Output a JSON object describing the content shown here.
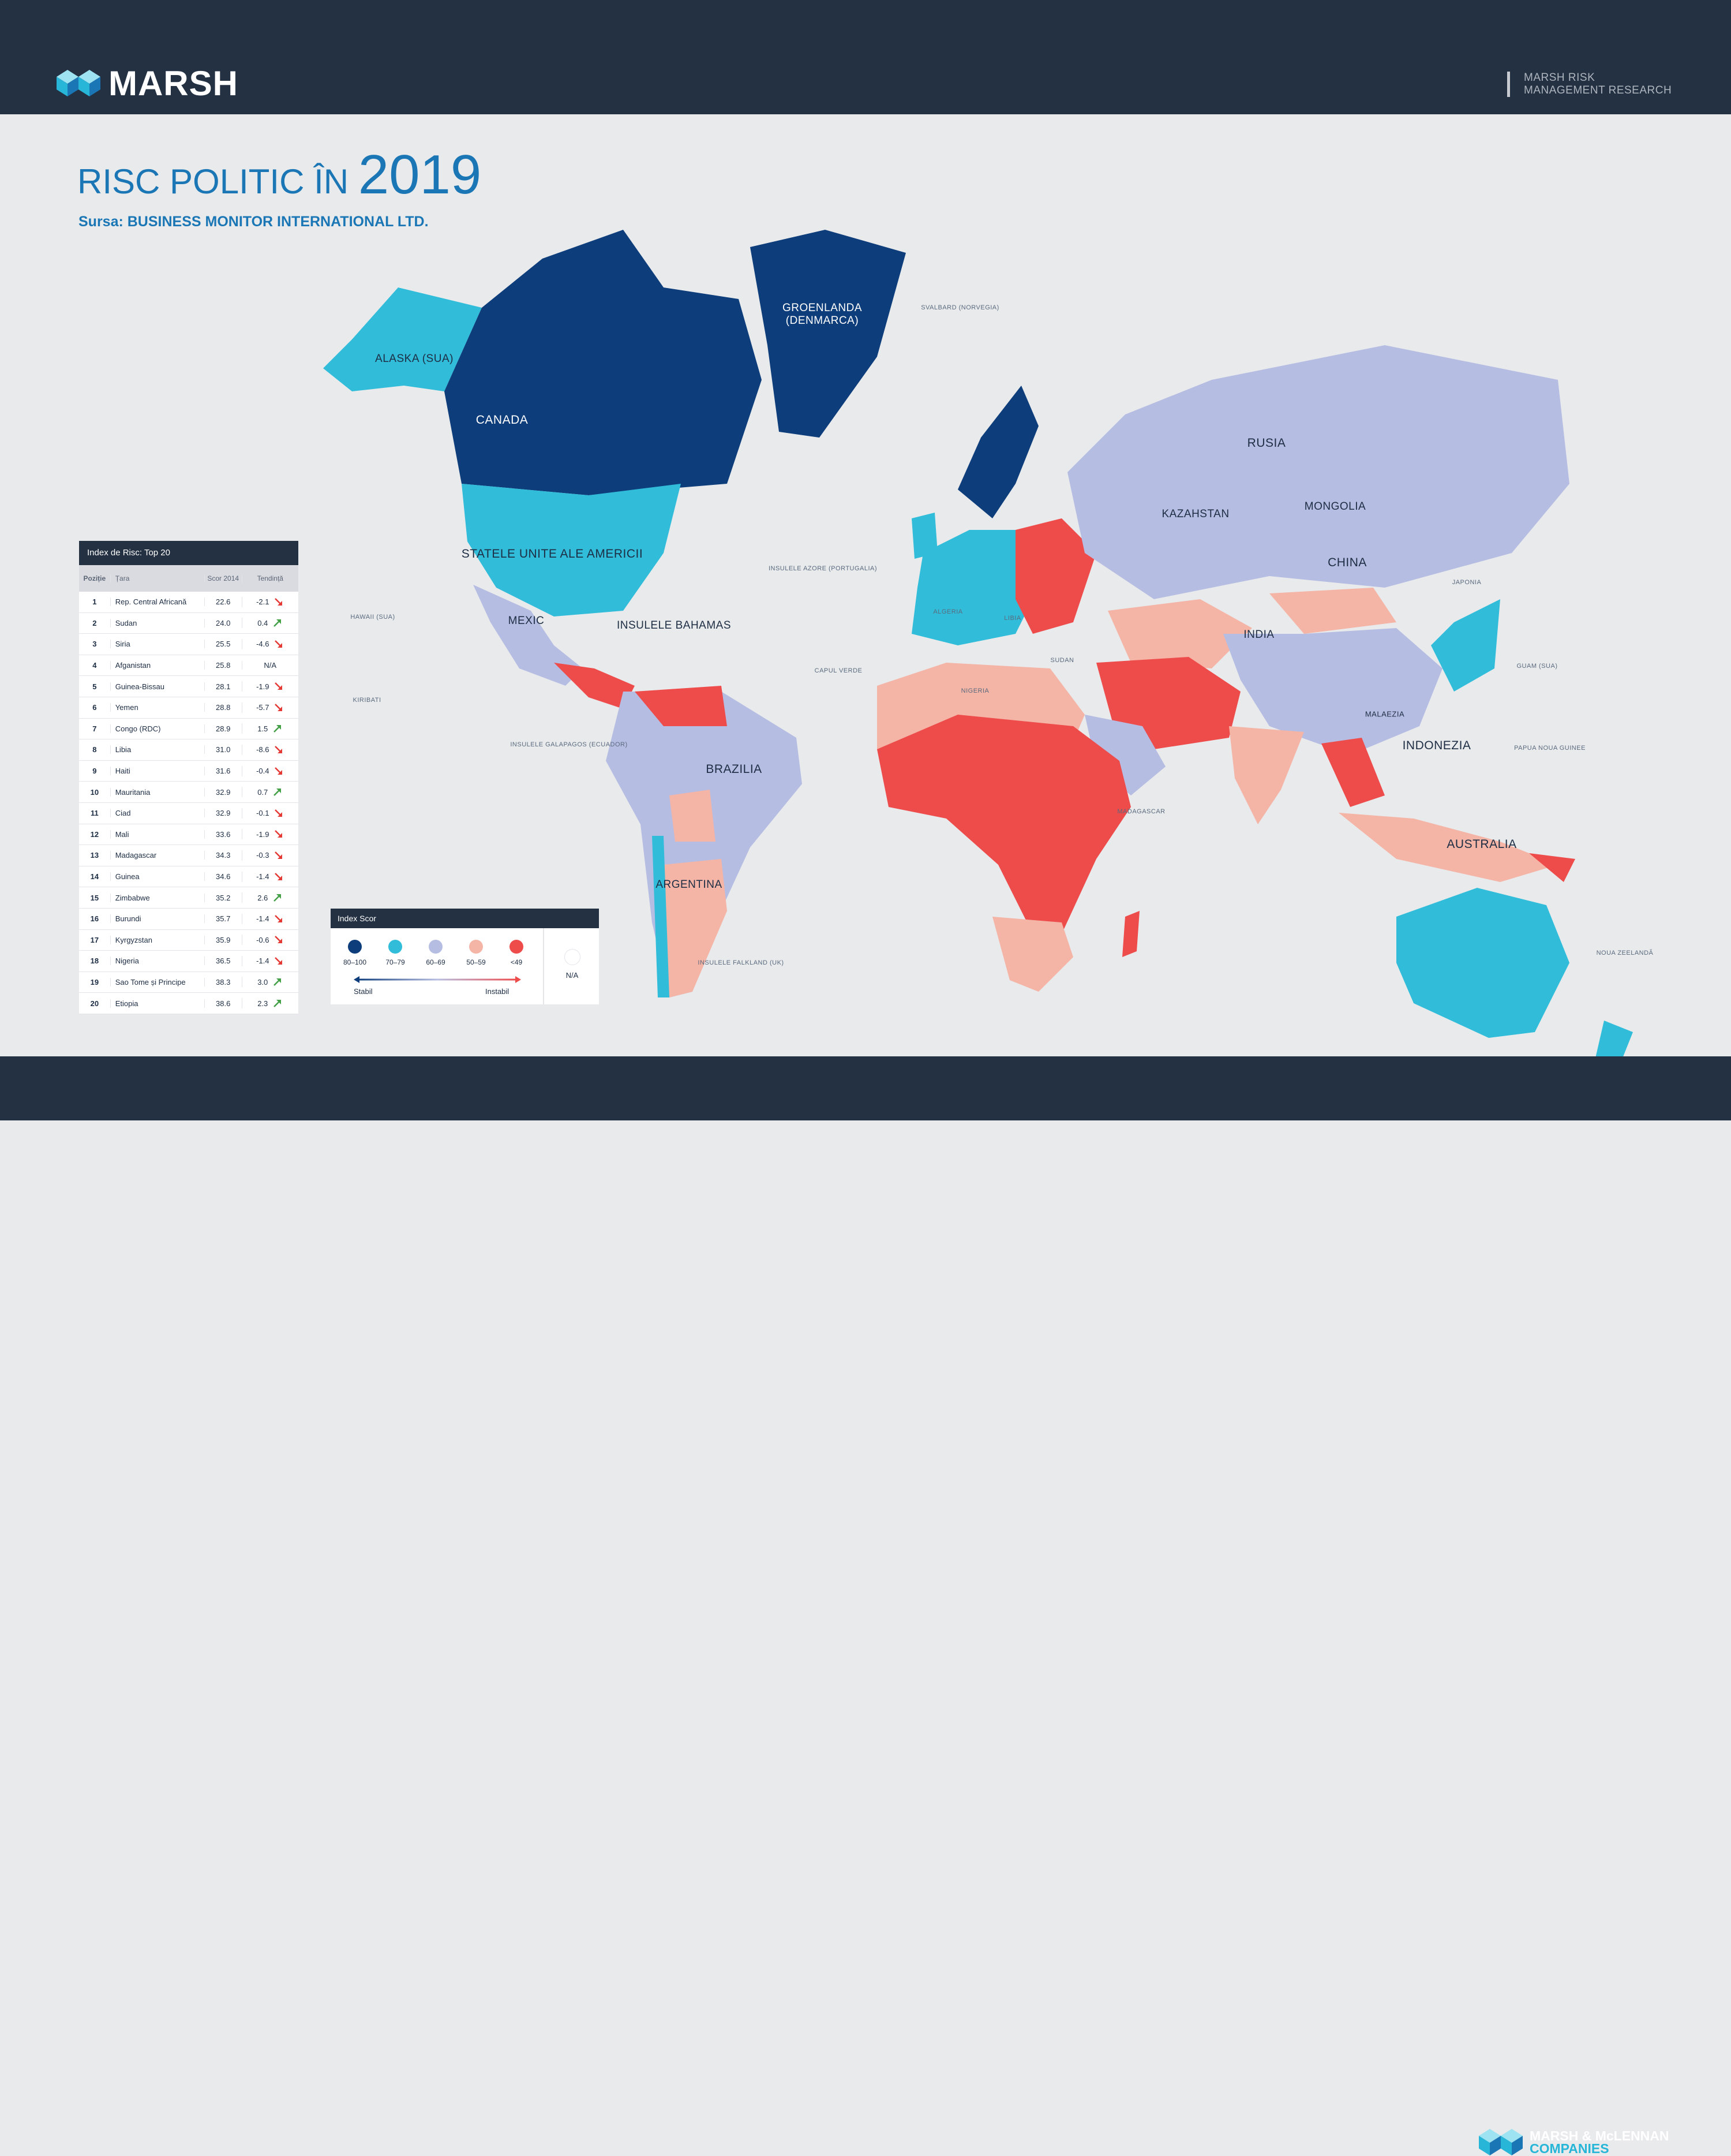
{
  "header": {
    "logo_text": "MARSH",
    "research_line1": "MARSH RISK",
    "research_line2": "MANAGEMENT RESEARCH"
  },
  "title": {
    "main": "RISC POLITIC ÎN ",
    "year": "2019"
  },
  "source": "Sursa: BUSINESS MONITOR INTERNATIONAL LTD.",
  "footer": {
    "line1": "MARSH & McLENNAN",
    "line2": "COMPANIES"
  },
  "colors": {
    "c80_100": "#0d3d7a",
    "c70_79": "#31bdda",
    "c60_69": "#b6bde2",
    "c50_59": "#f4b4a6",
    "c49": "#ee4b4b",
    "na": "#ffffff",
    "header": "#233142",
    "title": "#1a76b4"
  },
  "map": {
    "labels": {
      "alaska": "ALASKA (SUA)",
      "canada": "CANADA",
      "greenland": "GROENLANDA (DENMARCA)",
      "usa": "STATELE UNITE ALE AMERICII",
      "mexico": "MEXIC",
      "brazil": "BRAZILIA",
      "russia": "RUSIA",
      "china": "CHINA",
      "india": "INDIA",
      "indonesia": "INDONEZIA",
      "australia": "AUSTRALIA",
      "mongolia": "MONGOLIA",
      "kazakhstan": "KAZAHSTAN",
      "argentina": "ARGENTINA",
      "bahamas": "INSULELE BAHAMAS",
      "azores": "INSULELE AZORE (PORTUGALIA)",
      "hawaii": "HAWAII (SUA)",
      "kiribati": "KIRIBATI",
      "cape_verde": "CAPUL VERDE",
      "galapagos": "INSULELE GALAPAGOS (ECUADOR)",
      "falkland": "INSULELE FALKLAND (UK)",
      "svalbard": "SVALBARD (NORVEGIA)",
      "malaysia": "MALAEZIA",
      "nz": "NOUA ZEELANDĂ",
      "png": "PAPUA NOUA GUINEE",
      "guam": "GUAM (SUA)",
      "japan": "JAPONIA",
      "libya": "LIBIA",
      "algeria": "ALGERIA",
      "sudan": "SUDAN",
      "nigeria": "NIGERIA",
      "madagascar": "MADAGASCAR"
    }
  },
  "table": {
    "title": "Index de Risc: Top 20",
    "col_pos": "Poziție",
    "col_country": "Țara",
    "col_score": "Scor 2014",
    "col_trend": "Tendință",
    "rows": [
      {
        "pos": "1",
        "country": "Rep. Central Africană",
        "score": "22.6",
        "trend": "-2.1",
        "dir": "down"
      },
      {
        "pos": "2",
        "country": "Sudan",
        "score": "24.0",
        "trend": "0.4",
        "dir": "up"
      },
      {
        "pos": "3",
        "country": "Siria",
        "score": "25.5",
        "trend": "-4.6",
        "dir": "down"
      },
      {
        "pos": "4",
        "country": "Afganistan",
        "score": "25.8",
        "trend": "N/A",
        "dir": "none"
      },
      {
        "pos": "5",
        "country": "Guinea-Bissau",
        "score": "28.1",
        "trend": "-1.9",
        "dir": "down"
      },
      {
        "pos": "6",
        "country": "Yemen",
        "score": "28.8",
        "trend": "-5.7",
        "dir": "down"
      },
      {
        "pos": "7",
        "country": "Congo (RDC)",
        "score": "28.9",
        "trend": "1.5",
        "dir": "up"
      },
      {
        "pos": "8",
        "country": "Libia",
        "score": "31.0",
        "trend": "-8.6",
        "dir": "down"
      },
      {
        "pos": "9",
        "country": "Haiti",
        "score": "31.6",
        "trend": "-0.4",
        "dir": "down"
      },
      {
        "pos": "10",
        "country": "Mauritania",
        "score": "32.9",
        "trend": "0.7",
        "dir": "up"
      },
      {
        "pos": "11",
        "country": "Ciad",
        "score": "32.9",
        "trend": "-0.1",
        "dir": "down"
      },
      {
        "pos": "12",
        "country": "Mali",
        "score": "33.6",
        "trend": "-1.9",
        "dir": "down"
      },
      {
        "pos": "13",
        "country": "Madagascar",
        "score": "34.3",
        "trend": "-0.3",
        "dir": "down"
      },
      {
        "pos": "14",
        "country": "Guinea",
        "score": "34.6",
        "trend": "-1.4",
        "dir": "down"
      },
      {
        "pos": "15",
        "country": "Zimbabwe",
        "score": "35.2",
        "trend": "2.6",
        "dir": "up"
      },
      {
        "pos": "16",
        "country": "Burundi",
        "score": "35.7",
        "trend": "-1.4",
        "dir": "down"
      },
      {
        "pos": "17",
        "country": "Kyrgyzstan",
        "score": "35.9",
        "trend": "-0.6",
        "dir": "down"
      },
      {
        "pos": "18",
        "country": "Nigeria",
        "score": "36.5",
        "trend": "-1.4",
        "dir": "down"
      },
      {
        "pos": "19",
        "country": "Sao Tome și Principe",
        "score": "38.3",
        "trend": "3.0",
        "dir": "up"
      },
      {
        "pos": "20",
        "country": "Etiopia",
        "score": "38.6",
        "trend": "2.3",
        "dir": "up"
      }
    ]
  },
  "legend": {
    "title": "Index Scor",
    "ranges": [
      "80–100",
      "70–79",
      "60–69",
      "50–59",
      "<49"
    ],
    "na": "N/A",
    "stable": "Stabil",
    "unstable": "Instabil"
  }
}
